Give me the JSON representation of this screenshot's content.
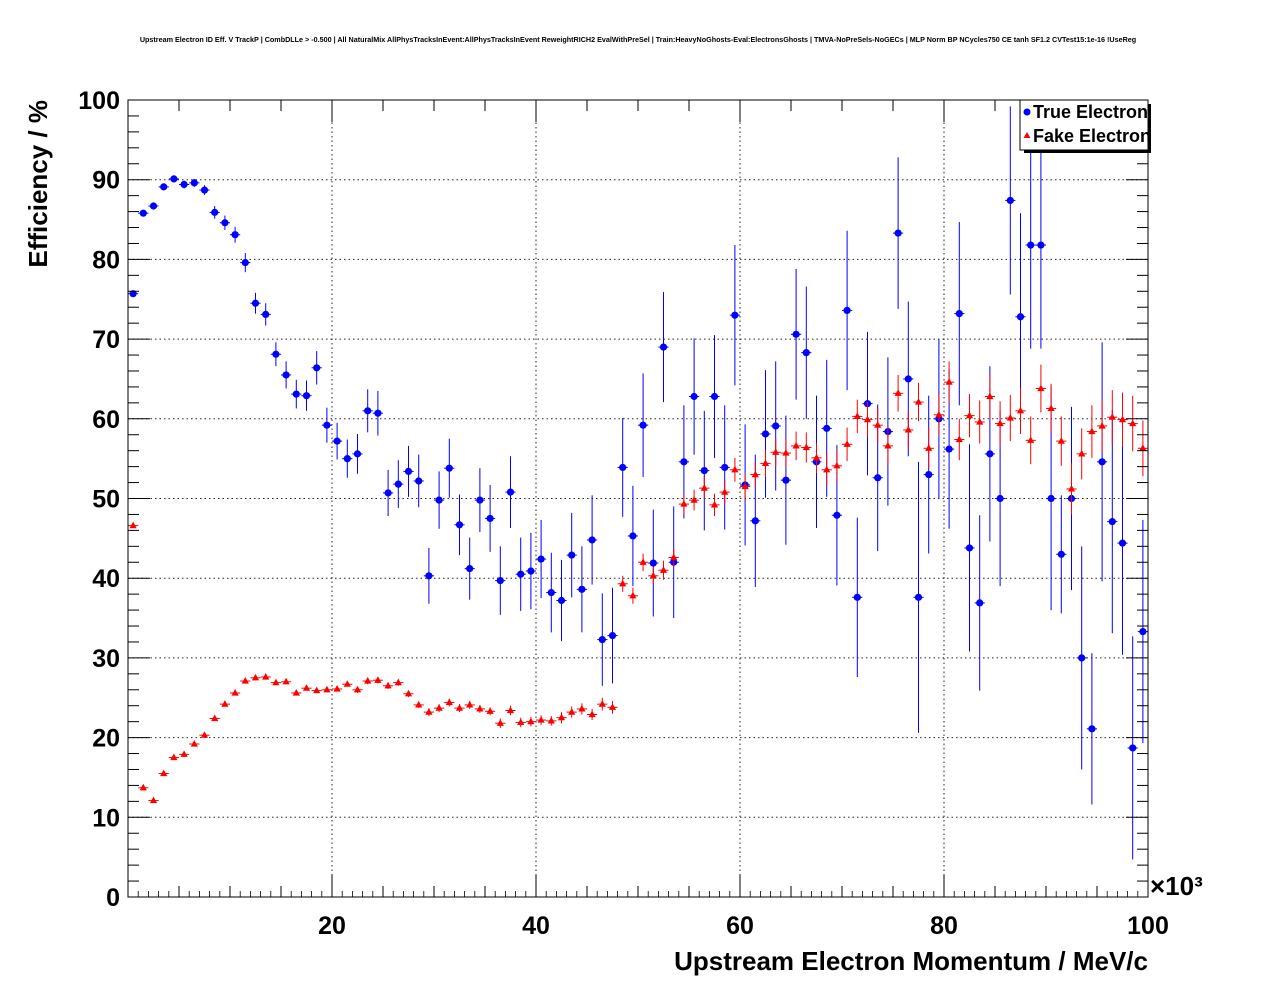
{
  "chart_data": {
    "type": "scatter",
    "title": "Upstream Electron ID Eff. V TrackP | CombDLLe > -0.500 | All NaturalMix AllPhysTracksInEvent:AllPhysTracksInEvent ReweightRICH2 EvalWithPreSel | Train:HeavyNoGhosts-Eval:ElectronsGhosts | TMVA-NoPreSels-NoGECs | MLP Norm BP NCycles750 CE tanh SF1.2 CVTest15:1e-16 !UseReg",
    "xlabel": "Upstream Electron Momentum / MeV/c",
    "ylabel": "Efficiency / %",
    "x_multiplier_label": "×10³",
    "xlim": [
      0,
      100
    ],
    "ylim": [
      0,
      100
    ],
    "x_ticks": [
      20,
      40,
      60,
      80,
      100
    ],
    "x_tick_labels": [
      "20",
      "40",
      "60",
      "80",
      "100"
    ],
    "y_ticks": [
      0,
      10,
      20,
      30,
      40,
      50,
      60,
      70,
      80,
      90,
      100
    ],
    "y_tick_labels": [
      "0",
      "10",
      "20",
      "30",
      "40",
      "50",
      "60",
      "70",
      "80",
      "90",
      "100"
    ],
    "grid": true,
    "legend_position": "top-right",
    "series": [
      {
        "name": "True Electron",
        "color": "#0000ff",
        "marker": "circle",
        "x": [
          0.5,
          1.5,
          2.5,
          3.5,
          4.5,
          5.5,
          6.5,
          7.5,
          8.5,
          9.5,
          10.5,
          11.5,
          12.5,
          13.5,
          14.5,
          15.5,
          16.5,
          17.5,
          18.5,
          19.5,
          20.5,
          21.5,
          22.5,
          23.5,
          24.5,
          25.5,
          26.5,
          27.5,
          28.5,
          29.5,
          30.5,
          31.5,
          32.5,
          33.5,
          34.5,
          35.5,
          36.5,
          37.5,
          38.5,
          39.5,
          40.5,
          41.5,
          42.5,
          43.5,
          44.5,
          45.5,
          46.5,
          47.5,
          48.5,
          49.5,
          50.5,
          51.5,
          52.5,
          53.5,
          54.5,
          55.5,
          56.5,
          57.5,
          58.5,
          59.5,
          60.5,
          61.5,
          62.5,
          63.5,
          64.5,
          65.5,
          66.5,
          67.5,
          68.5,
          69.5,
          70.5,
          71.5,
          72.5,
          73.5,
          74.5,
          75.5,
          76.5,
          77.5,
          78.5,
          79.5,
          80.5,
          81.5,
          82.5,
          83.5,
          84.5,
          85.5,
          86.5,
          87.5,
          88.5,
          89.5,
          90.5,
          91.5,
          92.5,
          93.5,
          94.5,
          95.5,
          96.5,
          97.5,
          98.5,
          99.5
        ],
        "y": [
          75.7,
          85.8,
          86.7,
          89.1,
          90.1,
          89.4,
          89.6,
          88.7,
          85.9,
          84.6,
          83.1,
          79.6,
          74.5,
          73.1,
          68.1,
          65.5,
          63.1,
          62.9,
          66.4,
          59.2,
          57.2,
          55.0,
          55.6,
          61.0,
          60.7,
          50.7,
          51.8,
          53.4,
          52.2,
          40.3,
          49.8,
          53.8,
          46.7,
          41.2,
          49.8,
          47.5,
          39.7,
          50.8,
          40.5,
          40.9,
          42.4,
          38.2,
          37.2,
          42.9,
          38.6,
          44.8,
          32.3,
          32.8,
          53.9,
          45.3,
          59.2,
          41.9,
          69.0,
          42.0,
          54.6,
          62.8,
          53.5,
          62.8,
          53.9,
          73.0,
          51.7,
          47.2,
          58.1,
          59.1,
          52.3,
          70.6,
          68.3,
          54.6,
          58.8,
          47.9,
          73.6,
          37.6,
          61.9,
          52.6,
          58.4,
          83.3,
          65.0,
          37.6,
          53.0,
          60.0,
          56.2,
          73.2,
          43.8,
          36.9,
          55.6,
          50.0,
          87.4,
          72.8,
          81.8,
          81.8,
          50.0,
          43.0,
          50.0,
          30.0,
          21.1,
          54.6,
          47.1,
          44.4,
          18.7,
          33.3
        ],
        "y_err": [
          0.4,
          0.4,
          0.4,
          0.4,
          0.4,
          0.5,
          0.5,
          0.6,
          0.8,
          0.9,
          1.0,
          1.2,
          1.3,
          1.4,
          1.5,
          1.7,
          1.8,
          1.9,
          2.1,
          2.2,
          2.3,
          2.4,
          2.5,
          2.7,
          2.8,
          2.9,
          3.0,
          3.2,
          3.3,
          3.5,
          3.6,
          3.7,
          3.8,
          3.9,
          4.0,
          4.2,
          4.3,
          4.5,
          4.6,
          4.8,
          4.9,
          5.0,
          5.1,
          5.3,
          5.4,
          5.6,
          5.8,
          6.0,
          6.2,
          6.3,
          6.5,
          6.7,
          6.9,
          7.0,
          7.1,
          7.3,
          7.5,
          7.7,
          7.8,
          8.8,
          7.6,
          8.3,
          8.0,
          8.1,
          8.1,
          8.2,
          8.3,
          8.3,
          8.6,
          8.8,
          10.0,
          10.0,
          9.0,
          9.2,
          9.3,
          9.5,
          9.7,
          17.0,
          9.9,
          10.0,
          10.0,
          11.5,
          13.0,
          11.0,
          11.0,
          11.0,
          11.8,
          13.0,
          13.0,
          13.0,
          14.0,
          7.4,
          11.5,
          14.0,
          9.5,
          15.0,
          14.0,
          14.0,
          14.0,
          14.0
        ]
      },
      {
        "name": "Fake Electron",
        "color": "#ff0000",
        "marker": "triangle",
        "x": [
          0.5,
          1.5,
          2.5,
          3.5,
          4.5,
          5.5,
          6.5,
          7.5,
          8.5,
          9.5,
          10.5,
          11.5,
          12.5,
          13.5,
          14.5,
          15.5,
          16.5,
          17.5,
          18.5,
          19.5,
          20.5,
          21.5,
          22.5,
          23.5,
          24.5,
          25.5,
          26.5,
          27.5,
          28.5,
          29.5,
          30.5,
          31.5,
          32.5,
          33.5,
          34.5,
          35.5,
          36.5,
          37.5,
          38.5,
          39.5,
          40.5,
          41.5,
          42.5,
          43.5,
          44.5,
          45.5,
          46.5,
          47.5,
          48.5,
          49.5,
          50.5,
          51.5,
          52.5,
          53.5,
          54.5,
          55.5,
          56.5,
          57.5,
          58.5,
          59.5,
          60.5,
          61.5,
          62.5,
          63.5,
          64.5,
          65.5,
          66.5,
          67.5,
          68.5,
          69.5,
          70.5,
          71.5,
          72.5,
          73.5,
          74.5,
          75.5,
          76.5,
          77.5,
          78.5,
          79.5,
          80.5,
          81.5,
          82.5,
          83.5,
          84.5,
          85.5,
          86.5,
          87.5,
          88.5,
          89.5,
          90.5,
          91.5,
          92.5,
          93.5,
          94.5,
          95.5,
          96.5,
          97.5,
          98.5,
          99.5
        ],
        "y": [
          46.6,
          13.7,
          12.1,
          15.5,
          17.5,
          17.9,
          19.2,
          20.3,
          22.4,
          24.2,
          25.6,
          27.1,
          27.5,
          27.6,
          26.9,
          27.0,
          25.6,
          26.2,
          25.9,
          26.0,
          26.1,
          26.7,
          26.0,
          27.1,
          27.2,
          26.5,
          26.9,
          25.5,
          24.1,
          23.2,
          23.7,
          24.4,
          23.7,
          24.1,
          23.6,
          23.3,
          21.8,
          23.4,
          21.9,
          22.0,
          22.2,
          22.1,
          22.5,
          23.2,
          23.6,
          22.9,
          24.2,
          23.8,
          39.3,
          37.8,
          42.0,
          40.3,
          41.0,
          42.6,
          49.3,
          49.8,
          51.3,
          49.2,
          50.8,
          53.6,
          51.5,
          53.0,
          54.4,
          55.8,
          55.7,
          56.6,
          56.4,
          55.1,
          53.6,
          54.1,
          56.8,
          60.3,
          59.9,
          59.2,
          56.6,
          63.2,
          58.6,
          62.1,
          56.3,
          60.5,
          64.6,
          57.4,
          60.4,
          59.6,
          62.8,
          59.4,
          60.1,
          61.0,
          57.3,
          63.8,
          61.3,
          57.2,
          51.2,
          55.6,
          58.4,
          59.1,
          60.2,
          59.9,
          59.4,
          56.3
        ],
        "y_err": [
          0.3,
          0.3,
          0.3,
          0.3,
          0.3,
          0.3,
          0.3,
          0.3,
          0.3,
          0.3,
          0.3,
          0.3,
          0.3,
          0.3,
          0.3,
          0.3,
          0.3,
          0.3,
          0.3,
          0.3,
          0.3,
          0.3,
          0.4,
          0.4,
          0.4,
          0.4,
          0.4,
          0.4,
          0.4,
          0.5,
          0.5,
          0.5,
          0.5,
          0.5,
          0.5,
          0.5,
          0.6,
          0.6,
          0.6,
          0.6,
          0.6,
          0.6,
          0.7,
          0.7,
          0.7,
          0.7,
          0.8,
          0.8,
          1.0,
          1.0,
          1.1,
          1.1,
          1.2,
          1.2,
          1.3,
          1.3,
          1.4,
          1.4,
          1.5,
          1.5,
          1.6,
          1.6,
          1.7,
          1.7,
          1.8,
          1.8,
          1.9,
          1.9,
          2.0,
          2.0,
          2.1,
          2.1,
          2.2,
          2.2,
          2.3,
          2.3,
          2.4,
          2.4,
          2.5,
          2.5,
          2.6,
          2.6,
          2.7,
          2.7,
          2.8,
          2.8,
          2.9,
          2.9,
          3.0,
          3.0,
          3.1,
          3.1,
          3.2,
          3.2,
          3.3,
          3.3,
          3.4,
          3.4,
          3.5,
          3.5
        ]
      }
    ]
  }
}
